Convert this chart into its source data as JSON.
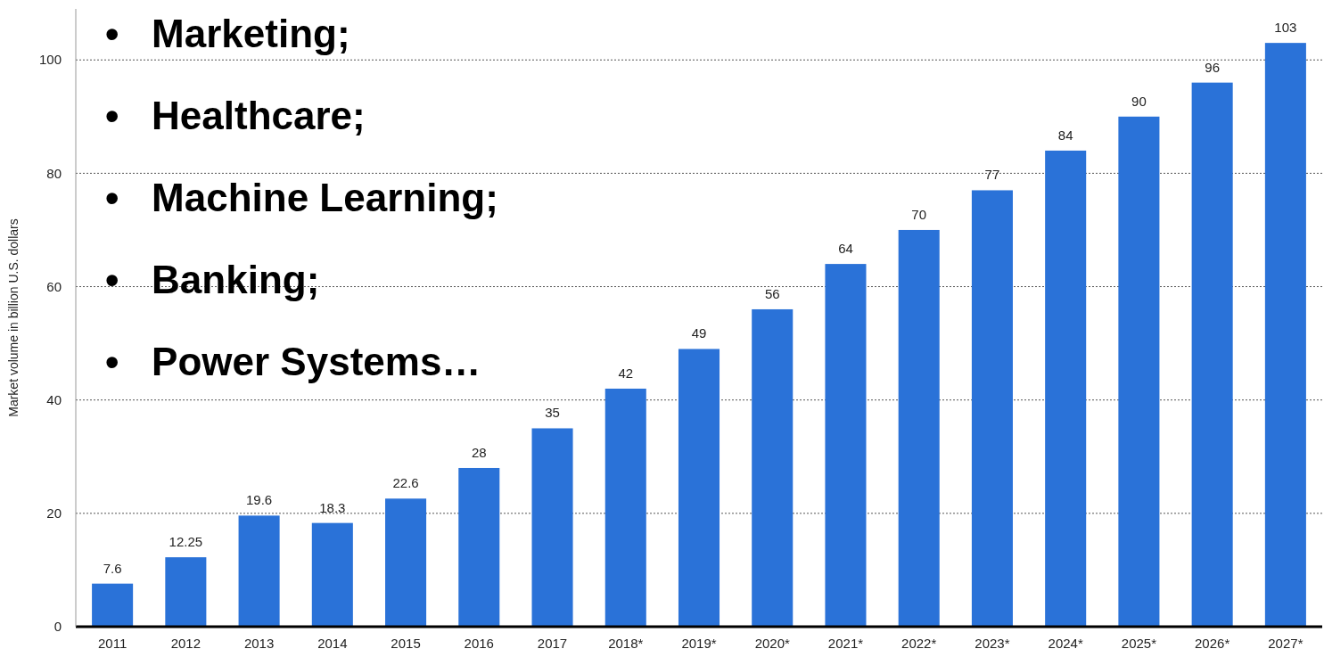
{
  "chart_data": {
    "type": "bar",
    "ylabel": "Market volume in billion U.S. dollars",
    "categories": [
      "2011",
      "2012",
      "2013",
      "2014",
      "2015",
      "2016",
      "2017",
      "2018*",
      "2019*",
      "2020*",
      "2021*",
      "2022*",
      "2023*",
      "2024*",
      "2025*",
      "2026*",
      "2027*"
    ],
    "values": [
      7.6,
      12.25,
      19.6,
      18.3,
      22.6,
      28,
      35,
      42,
      49,
      56,
      64,
      70,
      77,
      84,
      90,
      96,
      103
    ],
    "value_labels": [
      "7.6",
      "12.25",
      "19.6",
      "18.3",
      "22.6",
      "28",
      "35",
      "42",
      "49",
      "56",
      "64",
      "70",
      "77",
      "84",
      "90",
      "96",
      "103"
    ],
    "color": "#2a72d8",
    "ylim": [
      0,
      109
    ],
    "yticks": [
      0,
      20,
      40,
      60,
      80,
      100
    ],
    "grid": "y",
    "annotations": [
      "•   Marketing;",
      "•   Healthcare;",
      "•   Machine Learning;",
      "•   Banking;",
      "•   Power Systems…"
    ]
  }
}
